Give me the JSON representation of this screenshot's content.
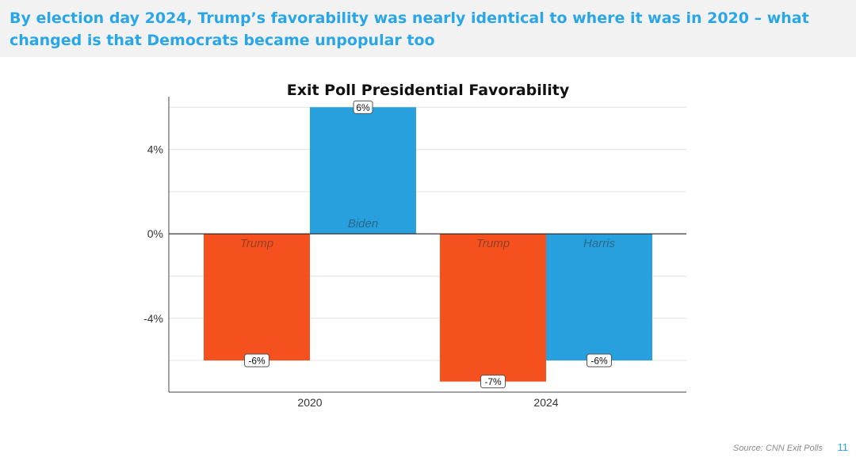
{
  "slide": {
    "headline": "By election day 2024, Trump’s favorability was nearly identical to where it was in 2020 – what changed is that Democrats became unpopular too",
    "source": "Source: CNN Exit Polls",
    "page_number": "11",
    "colors": {
      "header_bg": "#f2f2f2",
      "headline": "#29a6e8",
      "page_number": "#29a6e8"
    }
  },
  "chart_data": {
    "type": "bar",
    "title": "Exit Poll Presidential Favorability",
    "xlabel": "",
    "ylabel": "",
    "categories": [
      "2020",
      "2024"
    ],
    "bars": [
      {
        "category": "2020",
        "candidate": "Trump",
        "value": -6,
        "label": "-6%",
        "color": "#f4511e"
      },
      {
        "category": "2020",
        "candidate": "Biden",
        "value": 6,
        "label": "6%",
        "color": "#29a0de"
      },
      {
        "category": "2024",
        "candidate": "Trump",
        "value": -7,
        "label": "-7%",
        "color": "#f4511e"
      },
      {
        "category": "2024",
        "candidate": "Harris",
        "value": -6,
        "label": "-6%",
        "color": "#29a0de"
      }
    ],
    "ylim": [
      -7.5,
      6.5
    ],
    "yticks": [
      -4,
      0,
      4
    ],
    "ytick_labels": [
      "-4%",
      "0%",
      "4%"
    ],
    "grid": true,
    "legend": "none"
  }
}
